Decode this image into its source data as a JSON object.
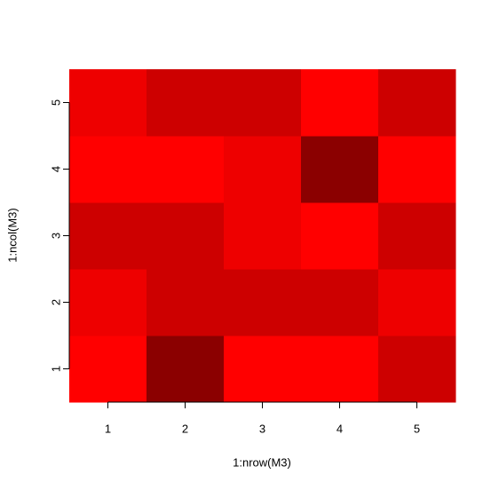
{
  "chart_data": {
    "type": "heatmap",
    "xlabel": "1:nrow(M3)",
    "ylabel": "1:ncol(M3)",
    "x": [
      1,
      2,
      3,
      4,
      5
    ],
    "y": [
      1,
      2,
      3,
      4,
      5
    ],
    "values": [
      [
        1,
        4,
        1,
        1,
        3
      ],
      [
        2,
        3,
        3,
        3,
        2
      ],
      [
        3,
        3,
        2,
        1,
        3
      ],
      [
        1,
        1,
        2,
        4,
        1
      ],
      [
        2,
        3,
        3,
        1,
        3
      ]
    ],
    "colors": [
      "#ff0000",
      "#ee0000",
      "#cd0000",
      "#8b0000"
    ],
    "zlim": [
      1,
      4
    ],
    "xlim": [
      0.5,
      5.5
    ],
    "ylim": [
      0.5,
      5.5
    ],
    "xticks": [
      1,
      2,
      3,
      4,
      5
    ],
    "yticks": [
      1,
      2,
      3,
      4,
      5
    ]
  }
}
